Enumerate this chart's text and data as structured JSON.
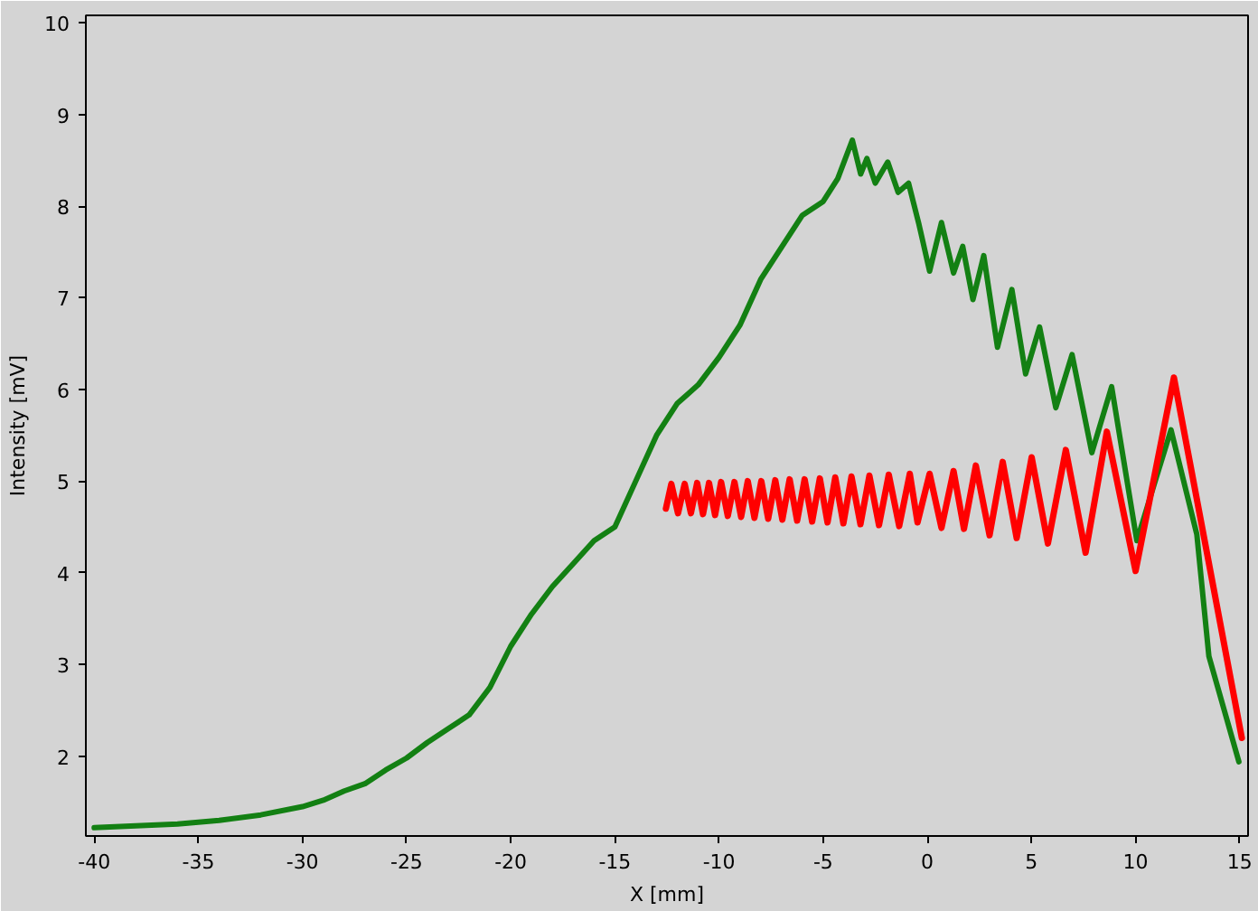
{
  "chart_data": {
    "type": "line",
    "xlabel": "X [mm]",
    "ylabel": "Intensity [mV]",
    "xlim": [
      -40.4,
      15.4
    ],
    "ylim": [
      1.13,
      10.08
    ],
    "xticks": [
      -40,
      -35,
      -30,
      -25,
      -20,
      -15,
      -10,
      -5,
      0,
      5,
      10,
      15
    ],
    "yticks": [
      2,
      3,
      4,
      5,
      6,
      7,
      8,
      9,
      10
    ],
    "grid": false,
    "series": [
      {
        "color": "#138013",
        "x": [
          -40,
          -38,
          -36,
          -34,
          -32,
          -30,
          -29,
          -28,
          -27,
          -26,
          -25,
          -24,
          -23,
          -22,
          -21,
          -20,
          -19,
          -18,
          -17,
          -16,
          -15,
          -14,
          -13,
          -12,
          -11,
          -10,
          -9,
          -8,
          -7,
          -6,
          -5,
          -4.3,
          -3.6,
          -3.2,
          -2.9,
          -2.5,
          -1.9,
          -1.4,
          -0.9,
          -0.4,
          0.11,
          0.68,
          1.26,
          1.7,
          2.19,
          2.71,
          3.37,
          4.06,
          4.72,
          5.39,
          6.17,
          6.95,
          7.9,
          8.85,
          10.06,
          11.7,
          12.94,
          13.52,
          14.96
        ],
        "values": [
          1.22,
          1.24,
          1.26,
          1.3,
          1.36,
          1.45,
          1.52,
          1.62,
          1.7,
          1.85,
          1.98,
          2.15,
          2.3,
          2.45,
          2.75,
          3.2,
          3.55,
          3.85,
          4.1,
          4.35,
          4.5,
          5.0,
          5.5,
          5.85,
          6.05,
          6.35,
          6.7,
          7.2,
          7.55,
          7.9,
          8.05,
          8.3,
          8.72,
          8.35,
          8.52,
          8.25,
          8.48,
          8.15,
          8.25,
          7.8,
          7.29,
          7.82,
          7.27,
          7.56,
          6.98,
          7.46,
          6.46,
          7.09,
          6.17,
          6.68,
          5.8,
          6.38,
          5.31,
          6.03,
          4.35,
          5.56,
          4.42,
          3.09,
          1.94
        ]
      },
      {
        "color": "#ff0000",
        "x": [
          -12.55,
          -12.29,
          -11.97,
          -11.65,
          -11.35,
          -11.05,
          -10.77,
          -10.48,
          -10.19,
          -9.9,
          -9.58,
          -9.26,
          -8.94,
          -8.62,
          -8.3,
          -7.97,
          -7.64,
          -7.3,
          -6.96,
          -6.61,
          -6.25,
          -5.89,
          -5.53,
          -5.16,
          -4.79,
          -4.42,
          -4.03,
          -3.64,
          -3.21,
          -2.78,
          -2.32,
          -1.85,
          -1.35,
          -0.84,
          -0.47,
          0.11,
          0.68,
          1.26,
          1.76,
          2.33,
          2.99,
          3.62,
          4.29,
          5.01,
          5.79,
          6.65,
          7.6,
          8.62,
          10.0,
          11.84,
          15.1
        ],
        "values": [
          4.7,
          4.97,
          4.65,
          4.97,
          4.65,
          4.98,
          4.64,
          4.98,
          4.63,
          4.99,
          4.62,
          4.99,
          4.61,
          5.0,
          4.6,
          5.0,
          4.59,
          5.01,
          4.58,
          5.02,
          4.57,
          5.02,
          4.56,
          5.03,
          4.55,
          5.04,
          4.54,
          5.05,
          4.53,
          5.06,
          4.52,
          5.07,
          4.51,
          5.08,
          4.55,
          5.08,
          4.49,
          5.11,
          4.48,
          5.17,
          4.41,
          5.21,
          4.38,
          5.26,
          4.32,
          5.34,
          4.22,
          5.54,
          4.02,
          6.13,
          2.2
        ]
      }
    ]
  }
}
